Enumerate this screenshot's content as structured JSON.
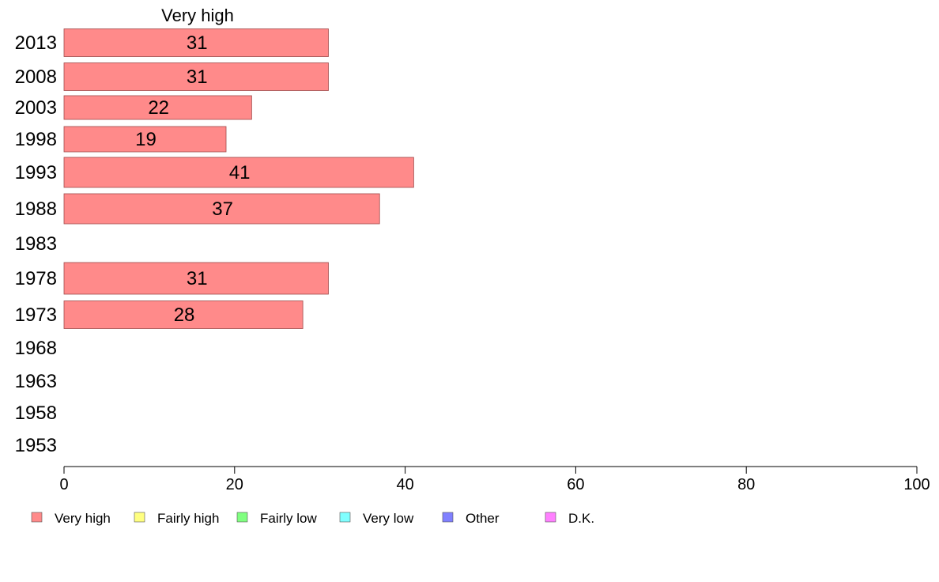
{
  "chart_data": {
    "type": "bar",
    "orientation": "horizontal",
    "series_title": "Very high",
    "categories": [
      "2013",
      "2008",
      "2003",
      "1998",
      "1993",
      "1988",
      "1983",
      "1978",
      "1973",
      "1968",
      "1963",
      "1958",
      "1953"
    ],
    "series": [
      {
        "name": "Very high",
        "color": "#ff8a8a",
        "values": [
          31,
          31,
          22,
          19,
          41,
          37,
          null,
          31,
          28,
          null,
          null,
          null,
          null
        ],
        "value_labels": [
          "31",
          "31",
          "22",
          "19",
          "41",
          "37",
          "",
          "31",
          "28",
          "",
          "",
          "",
          ""
        ]
      }
    ],
    "xlim": [
      0,
      100
    ],
    "xticks": [
      0,
      20,
      40,
      60,
      80,
      100
    ],
    "xlabel": "",
    "ylabel": "",
    "grid": false,
    "legend": {
      "position": "bottom",
      "items": [
        {
          "label": "Very high",
          "color": "#ff8a8a"
        },
        {
          "label": "Fairly high",
          "color": "#ffff80"
        },
        {
          "label": "Fairly low",
          "color": "#80ff80"
        },
        {
          "label": "Very low",
          "color": "#80ffff"
        },
        {
          "label": "Other",
          "color": "#8080ff"
        },
        {
          "label": "D.K.",
          "color": "#ff80ff"
        }
      ]
    }
  }
}
